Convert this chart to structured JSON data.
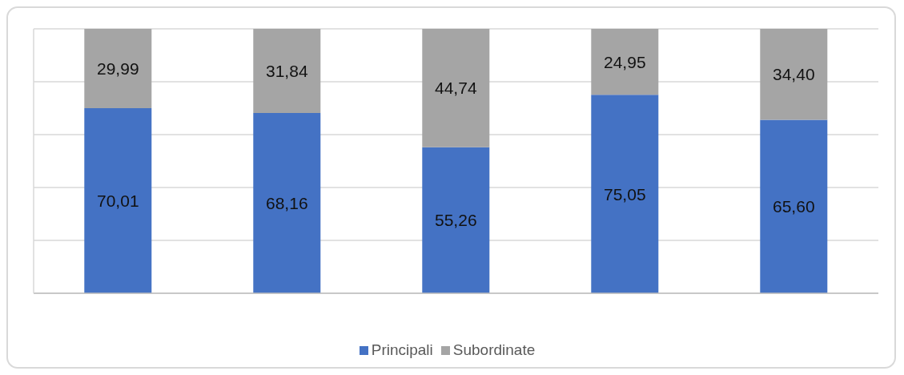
{
  "chart_data": {
    "type": "bar",
    "stacked": true,
    "categories": [
      null,
      null,
      null,
      null,
      null
    ],
    "series": [
      {
        "name": "Principali",
        "color": "#4472c4",
        "values": [
          70.01,
          68.16,
          55.26,
          75.05,
          65.6
        ],
        "value_labels": [
          "70,01",
          "68,16",
          "55,26",
          "75,05",
          "65,60"
        ]
      },
      {
        "name": "Subordinate",
        "color": "#a5a5a5",
        "values": [
          29.99,
          31.84,
          44.74,
          24.95,
          34.4
        ],
        "value_labels": [
          "29,99",
          "31,84",
          "44,74",
          "24,95",
          "34,40"
        ]
      }
    ],
    "ylim": [
      0,
      100
    ],
    "grid": "y",
    "legend": "bottom"
  }
}
